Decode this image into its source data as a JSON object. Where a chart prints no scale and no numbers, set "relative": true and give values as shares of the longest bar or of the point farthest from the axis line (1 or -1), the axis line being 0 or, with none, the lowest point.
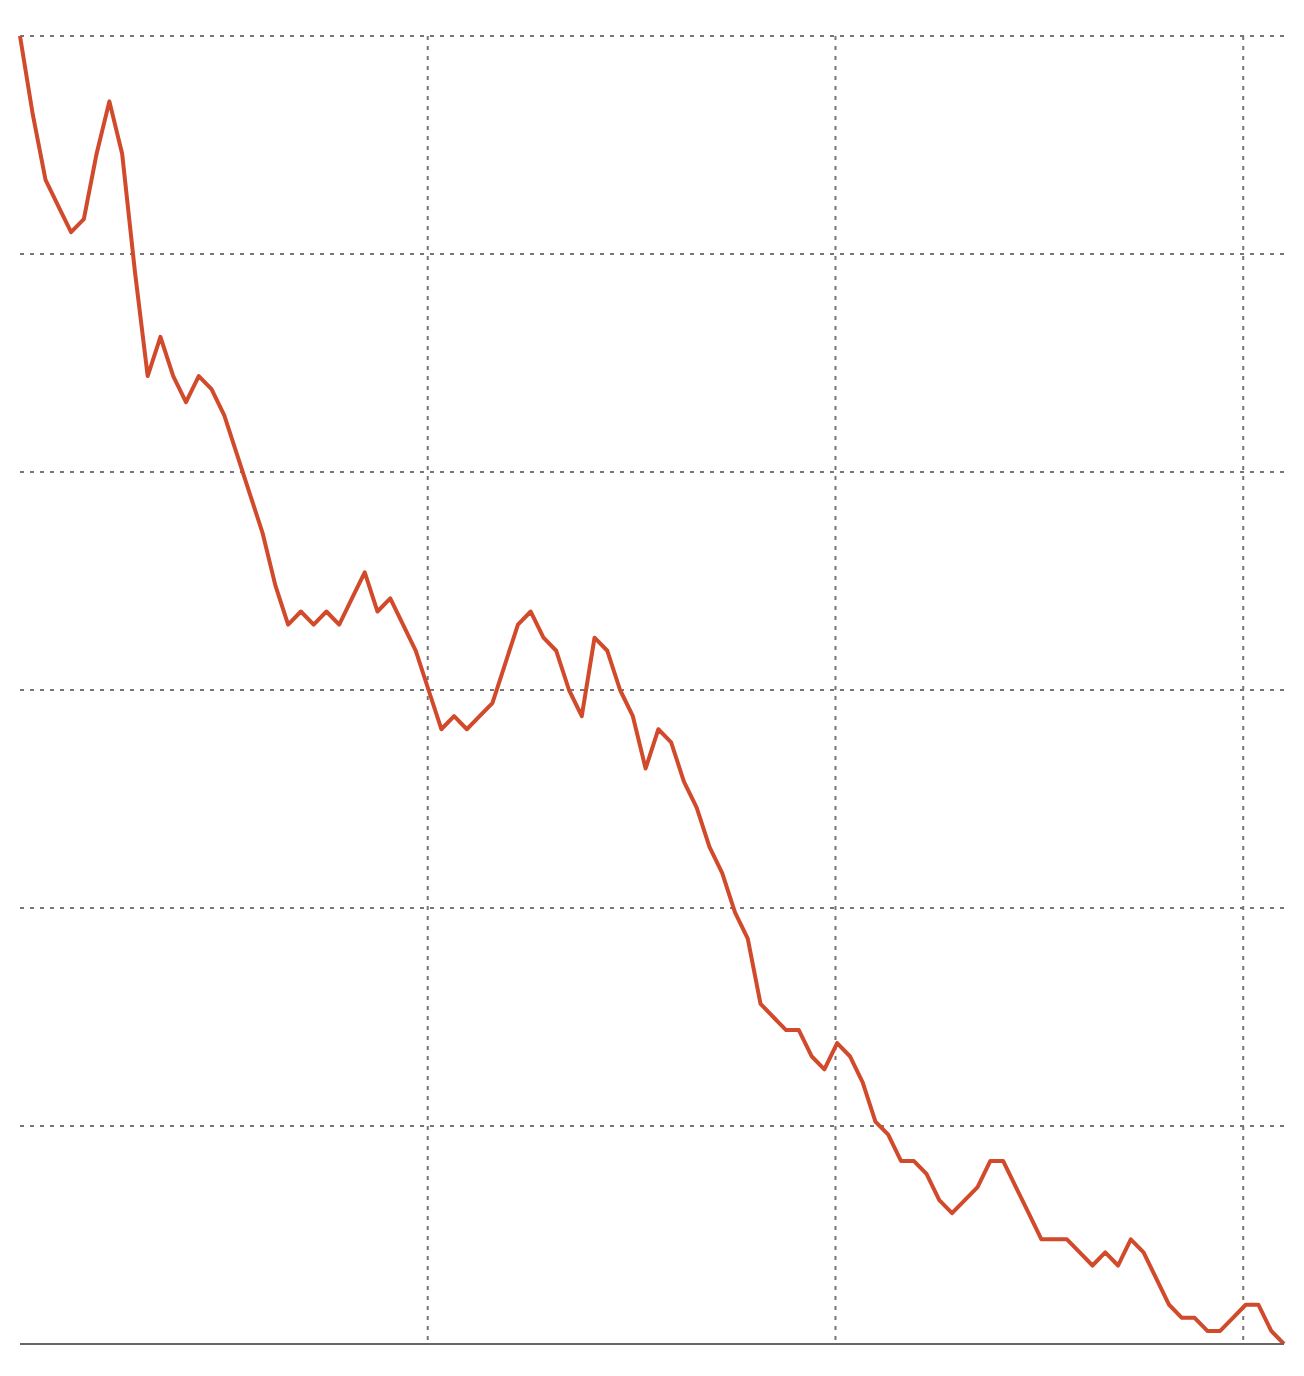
{
  "chart_data": {
    "type": "line",
    "relative": true,
    "grid": true,
    "marker": "none",
    "line_style": "solid",
    "categories": [
      null,
      null,
      null,
      null,
      null,
      null,
      null,
      null,
      null,
      null,
      null,
      null,
      null,
      null,
      null,
      null,
      null,
      null,
      null,
      null,
      null,
      null,
      null,
      null,
      null,
      null,
      null,
      null,
      null,
      null,
      null,
      null,
      null,
      null,
      null,
      null,
      null,
      null,
      null,
      null,
      null,
      null,
      null,
      null,
      null,
      null,
      null,
      null,
      null,
      null,
      null,
      null,
      null,
      null,
      null,
      null,
      null,
      null,
      null,
      null,
      null,
      null,
      null,
      null,
      null,
      null,
      null,
      null,
      null,
      null,
      null,
      null,
      null,
      null,
      null,
      null,
      null,
      null,
      null,
      null,
      null,
      null,
      null,
      null,
      null,
      null,
      null,
      null,
      null,
      null,
      null,
      null,
      null,
      null,
      null,
      null,
      null,
      null,
      null,
      null
    ],
    "series": [
      {
        "color": "#d24a2c",
        "values": [
          1.0,
          0.94,
          0.89,
          0.87,
          0.85,
          0.86,
          0.91,
          0.95,
          0.91,
          0.82,
          0.74,
          0.77,
          0.74,
          0.72,
          0.74,
          0.73,
          0.71,
          0.68,
          0.65,
          0.62,
          0.58,
          0.55,
          0.56,
          0.55,
          0.56,
          0.55,
          0.57,
          0.59,
          0.56,
          0.57,
          0.55,
          0.53,
          0.5,
          0.47,
          0.48,
          0.47,
          0.48,
          0.49,
          0.52,
          0.55,
          0.56,
          0.54,
          0.53,
          0.5,
          0.48,
          0.54,
          0.53,
          0.5,
          0.48,
          0.44,
          0.47,
          0.46,
          0.43,
          0.41,
          0.38,
          0.36,
          0.33,
          0.31,
          0.26,
          0.25,
          0.24,
          0.24,
          0.22,
          0.21,
          0.23,
          0.22,
          0.2,
          0.17,
          0.16,
          0.14,
          0.14,
          0.13,
          0.11,
          0.1,
          0.11,
          0.12,
          0.14,
          0.14,
          0.12,
          0.1,
          0.08,
          0.08,
          0.08,
          0.07,
          0.06,
          0.07,
          0.06,
          0.08,
          0.07,
          0.05,
          0.03,
          0.02,
          0.02,
          0.01,
          0.01,
          0.02,
          0.03,
          0.03,
          0.01,
          0.0
        ]
      }
    ]
  }
}
